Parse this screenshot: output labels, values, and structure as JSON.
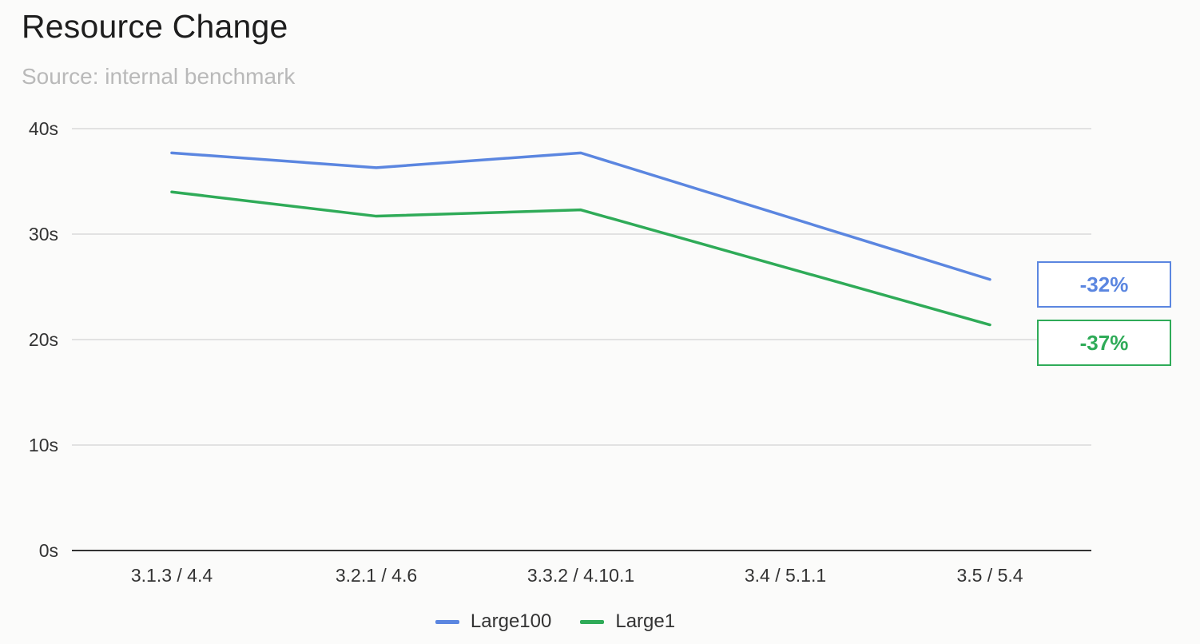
{
  "chart_data": {
    "type": "line",
    "title": "Resource Change",
    "subtitle": "Source: internal benchmark",
    "categories": [
      "3.1.3 / 4.4",
      "3.2.1 / 4.6",
      "3.3.2 / 4.10.1",
      "3.4 / 5.1.1",
      "3.5 / 5.4"
    ],
    "series": [
      {
        "name": "Large100",
        "color": "#5b86e0",
        "values": [
          37.7,
          36.3,
          37.7,
          null,
          25.7
        ]
      },
      {
        "name": "Large1",
        "color": "#2fab58",
        "values": [
          34.0,
          31.7,
          32.3,
          null,
          21.4
        ]
      }
    ],
    "ylim": [
      0,
      40
    ],
    "yticks": [
      0,
      10,
      20,
      30,
      40
    ],
    "ytick_labels": [
      "0s",
      "10s",
      "20s",
      "30s",
      "40s"
    ],
    "grid": true,
    "legend": "bottom",
    "annotations": [
      {
        "series": "Large100",
        "text": "-32%",
        "color": "#5b86e0"
      },
      {
        "series": "Large1",
        "text": "-37%",
        "color": "#2fab58"
      }
    ]
  }
}
